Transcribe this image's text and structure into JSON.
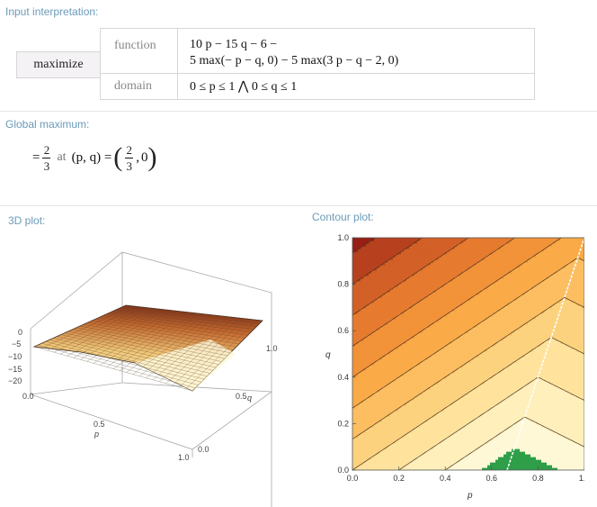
{
  "input_interpretation": {
    "title": "Input interpretation:",
    "command": "maximize",
    "rows": [
      {
        "label": "function",
        "line1": "10 p − 15 q − 6 −",
        "line2": "5 max(− p − q, 0) − 5 max(3 p − q − 2, 0)"
      },
      {
        "label": "domain",
        "value": "0 ≤ p ≤ 1 ⋀ 0 ≤ q ≤ 1"
      }
    ]
  },
  "global_maximum": {
    "title": "Global maximum:",
    "eq": "=",
    "value_num": "2",
    "value_den": "3",
    "at_text": "at",
    "point_label": "(p, q) =",
    "point_p_num": "2",
    "point_p_den": "3",
    "point_q": "0"
  },
  "plot3d": {
    "title": "3D plot:",
    "z_ticks": [
      "0",
      "−5",
      "−10",
      "−15",
      "−20"
    ],
    "p_ticks": [
      "0.0",
      "0.5",
      "1.0"
    ],
    "p_label": "p",
    "q_ticks": [
      "0.0",
      "0.5",
      "1.0"
    ],
    "q_label": "q",
    "colors": {
      "surface_dark": "#8b3a1f",
      "surface_light": "#fff3c4",
      "mesh": "#6b5a40",
      "box": "#999999"
    }
  },
  "contour": {
    "title": "Contour plot:",
    "x_ticks": [
      "0.0",
      "0.2",
      "0.4",
      "0.6",
      "0.8",
      "1.0"
    ],
    "y_ticks": [
      "0.0",
      "0.2",
      "0.4",
      "0.6",
      "0.8",
      "1.0"
    ],
    "xlabel": "p",
    "ylabel": "q",
    "colors": {
      "top_left": "#9e1f14",
      "mid": "#f5a34c",
      "low": "#fff0c2",
      "max_region": "#2e9e48",
      "ridge": "#ffffff"
    }
  },
  "chart_data": {
    "type": "heatmap",
    "x": [
      0.0,
      0.2,
      0.4,
      0.6,
      0.8,
      1.0
    ],
    "y": [
      0.0,
      0.2,
      0.4,
      0.6,
      0.8,
      1.0
    ],
    "xlim": [
      0,
      1
    ],
    "ylim": [
      0,
      1
    ],
    "xlabel": "p",
    "ylabel": "q",
    "maximum": {
      "p": 0.667,
      "q": 0,
      "value": 0.667
    }
  }
}
